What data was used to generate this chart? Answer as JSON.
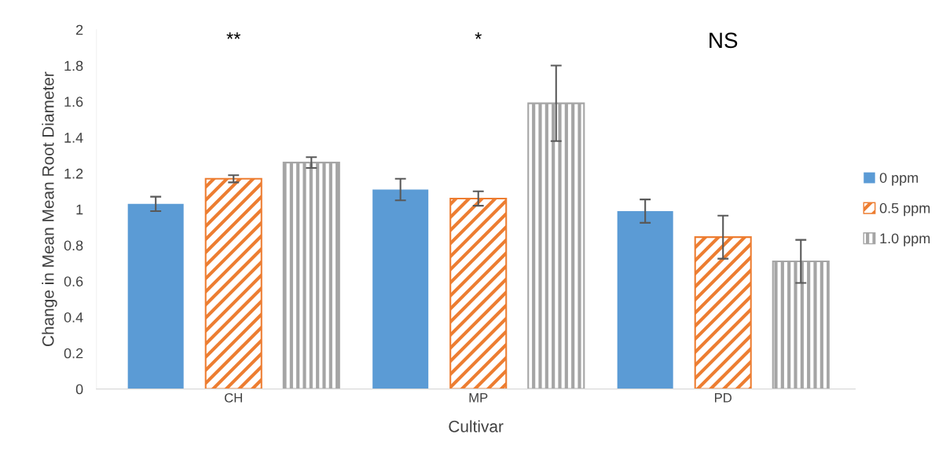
{
  "chart_data": {
    "type": "bar",
    "xlabel": "Cultivar",
    "ylabel": "Change in Mean Mean Root Diameter",
    "categories": [
      "CH",
      "MP",
      "PD"
    ],
    "series": [
      {
        "name": "0 ppm",
        "color": "#5b9bd5",
        "values": [
          1.03,
          1.11,
          0.99
        ],
        "errors": [
          0.04,
          0.06,
          0.065
        ]
      },
      {
        "name": "0.5 ppm",
        "color": "#ed7d31",
        "values": [
          1.17,
          1.06,
          0.845
        ],
        "errors": [
          0.02,
          0.04,
          0.12
        ]
      },
      {
        "name": "1.0 ppm",
        "color": "#a5a5a5",
        "values": [
          1.26,
          1.59,
          0.71
        ],
        "errors": [
          0.03,
          0.21,
          0.12
        ]
      }
    ],
    "ylim": [
      0,
      2
    ],
    "yticks": [
      0,
      0.2,
      0.4,
      0.6,
      0.8,
      1,
      1.2,
      1.4,
      1.6,
      1.8,
      2
    ],
    "annotations": [
      "**",
      "*",
      "NS"
    ],
    "grid": false,
    "legend": "right"
  }
}
